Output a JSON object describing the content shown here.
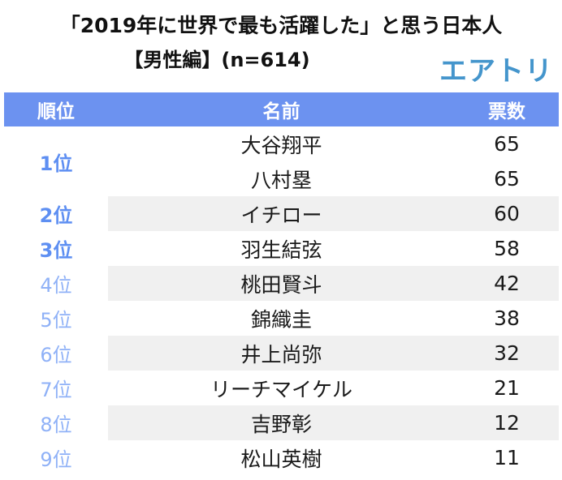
{
  "header": {
    "title_line1": "「2019年に世界で最も活躍した」と思う日本人",
    "title_line2": "【男性編】(n=614)",
    "logo_text": "エアトリ"
  },
  "table": {
    "columns": [
      "順位",
      "名前",
      "票数"
    ],
    "rows": [
      {
        "rank": "1位",
        "tier": "top",
        "shaded": false,
        "entries": [
          {
            "name": "大谷翔平",
            "votes": "65"
          },
          {
            "name": "八村塁",
            "votes": "65"
          }
        ]
      },
      {
        "rank": "2位",
        "tier": "top",
        "shaded": true,
        "entries": [
          {
            "name": "イチロー",
            "votes": "60"
          }
        ]
      },
      {
        "rank": "3位",
        "tier": "top",
        "shaded": false,
        "entries": [
          {
            "name": "羽生結弦",
            "votes": "58"
          }
        ]
      },
      {
        "rank": "4位",
        "tier": "normal",
        "shaded": true,
        "entries": [
          {
            "name": "桃田賢斗",
            "votes": "42"
          }
        ]
      },
      {
        "rank": "5位",
        "tier": "normal",
        "shaded": false,
        "entries": [
          {
            "name": "錦織圭",
            "votes": "38"
          }
        ]
      },
      {
        "rank": "6位",
        "tier": "normal",
        "shaded": true,
        "entries": [
          {
            "name": "井上尚弥",
            "votes": "32"
          }
        ]
      },
      {
        "rank": "7位",
        "tier": "normal",
        "shaded": false,
        "entries": [
          {
            "name": "リーチマイケル",
            "votes": "21"
          }
        ]
      },
      {
        "rank": "8位",
        "tier": "normal",
        "shaded": true,
        "entries": [
          {
            "name": "吉野彰",
            "votes": "12"
          }
        ]
      },
      {
        "rank": "9位",
        "tier": "normal",
        "shaded": false,
        "entries": [
          {
            "name": "松山英樹",
            "votes": "11"
          }
        ]
      }
    ]
  },
  "colors": {
    "header_bg": "#6C92F0",
    "header_text": "#FFFFFF",
    "rank_top": "#5E8FF2",
    "rank_normal": "#8FB1F7",
    "row_stripe": "#F0F0F0",
    "logo_blue": "#4495CC",
    "body_text": "#1A1A1A"
  },
  "chart_data": {
    "type": "table",
    "title": "「2019年に世界で最も活躍した」と思う日本人【男性編】(n=614)",
    "sample_size": 614,
    "columns": [
      "順位",
      "名前",
      "票数"
    ],
    "rows": [
      [
        "1位",
        "大谷翔平",
        65
      ],
      [
        "1位",
        "八村塁",
        65
      ],
      [
        "2位",
        "イチロー",
        60
      ],
      [
        "3位",
        "羽生結弦",
        58
      ],
      [
        "4位",
        "桃田賢斗",
        42
      ],
      [
        "5位",
        "錦織圭",
        38
      ],
      [
        "6位",
        "井上尚弥",
        32
      ],
      [
        "7位",
        "リーチマイケル",
        21
      ],
      [
        "8位",
        "吉野彰",
        12
      ],
      [
        "9位",
        "松山英樹",
        11
      ]
    ]
  }
}
